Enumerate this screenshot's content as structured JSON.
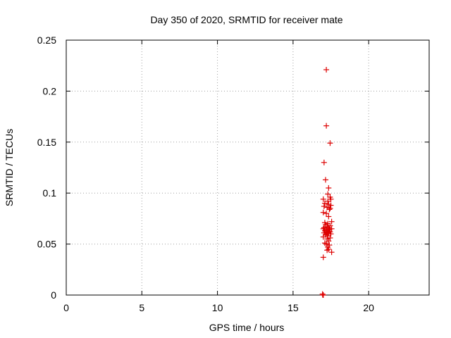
{
  "chart_data": {
    "type": "scatter",
    "title": "Day 350 of 2020, SRMTID for receiver mate",
    "xlabel": "GPS time / hours",
    "ylabel": "SRMTID / TECUs",
    "xlim": [
      0,
      24
    ],
    "ylim": [
      0,
      0.25
    ],
    "xticks": [
      0,
      5,
      10,
      15,
      20
    ],
    "xtick_labels": [
      "0",
      "5",
      "10",
      "15",
      "20"
    ],
    "yticks": [
      0,
      0.05,
      0.1,
      0.15,
      0.2,
      0.25
    ],
    "ytick_labels": [
      "0",
      "0.05",
      "0.1",
      "0.15",
      "0.2",
      "0.25"
    ],
    "grid": true,
    "marker": "+",
    "color": "#dd0000",
    "series": [
      {
        "name": "SRMTID",
        "x": [
          17.2,
          17.2,
          17.45,
          17.05,
          17.15,
          17.35,
          17.3,
          17.45,
          17.0,
          17.5,
          17.3,
          17.1,
          17.35,
          17.5,
          17.05,
          17.25,
          17.45,
          17.4,
          17.0,
          17.2,
          17.35,
          17.55,
          17.1,
          17.3,
          17.15,
          17.45,
          17.25,
          17.05,
          17.35,
          17.55,
          17.0,
          17.2,
          17.4,
          17.1,
          17.3,
          17.45,
          17.2,
          17.35,
          17.05,
          17.25,
          17.5,
          17.15,
          17.3,
          17.0,
          17.45,
          17.25,
          17.35,
          17.1,
          17.2,
          17.4,
          17.3,
          17.55,
          17.25,
          17.35,
          17.0,
          16.95,
          16.97,
          17.0
        ],
        "y": [
          0.221,
          0.166,
          0.149,
          0.13,
          0.113,
          0.105,
          0.099,
          0.096,
          0.094,
          0.094,
          0.092,
          0.09,
          0.089,
          0.088,
          0.087,
          0.086,
          0.085,
          0.084,
          0.081,
          0.08,
          0.077,
          0.072,
          0.071,
          0.07,
          0.069,
          0.068,
          0.067,
          0.066,
          0.066,
          0.065,
          0.065,
          0.064,
          0.064,
          0.063,
          0.063,
          0.062,
          0.062,
          0.061,
          0.061,
          0.06,
          0.06,
          0.059,
          0.058,
          0.057,
          0.056,
          0.055,
          0.053,
          0.051,
          0.05,
          0.049,
          0.047,
          0.042,
          0.044,
          0.045,
          0.037,
          0.001,
          0.0,
          0.0
        ]
      }
    ]
  }
}
